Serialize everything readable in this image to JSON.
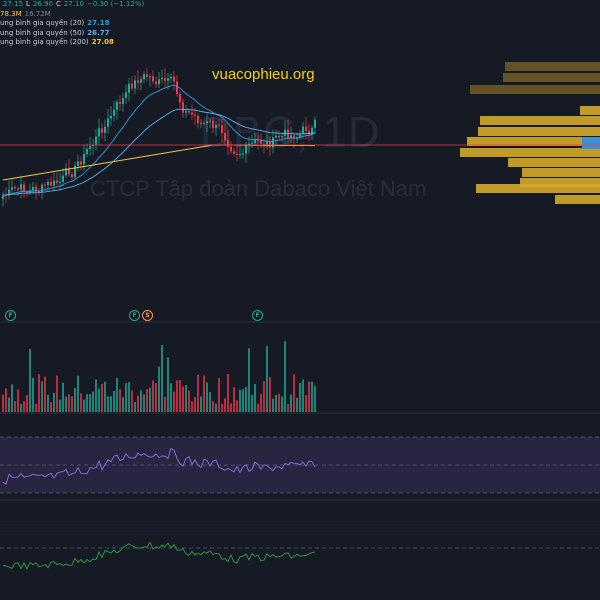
{
  "header": {
    "ohlc": [
      {
        "label": "",
        "value": "27.15"
      },
      {
        "label": "L",
        "value": "26.90"
      },
      {
        "label": "C",
        "value": "27.10"
      },
      {
        "label": "",
        "value": "−0.30 (−1.12%)"
      }
    ],
    "volume": {
      "value": "78.3M",
      "extra": "16.72M"
    },
    "moving_averages": [
      {
        "label": "ung bình gia quyền (20)",
        "value": "27.18",
        "color": "#2d9cdb"
      },
      {
        "label": "ung bình gia quyền (50)",
        "value": "26.77",
        "color": "#5ab0f0"
      },
      {
        "label": "ung bình gia quyền (200)",
        "value": "27.08",
        "color": "#f5c542"
      }
    ]
  },
  "watermark": {
    "site": "vuacophieu.org",
    "ticker": "DBC, 1D",
    "company": "CTCP Tập đoàn Dabaco Việt Nam"
  },
  "events": [
    {
      "label": "F",
      "kind": "f"
    },
    {
      "label": "F",
      "kind": "f"
    },
    {
      "label": "S",
      "kind": "s"
    },
    {
      "label": "F",
      "kind": "f"
    }
  ],
  "colors": {
    "up": "#22ab94",
    "down": "#f23645",
    "price_line": "#f23645",
    "volume_profile": "#d4a82a",
    "volume_profile_dim": "#6b5a25",
    "poc": "#3c8fd6",
    "rsi": "#8d6ee6",
    "osc": "#2f9e44"
  }
}
